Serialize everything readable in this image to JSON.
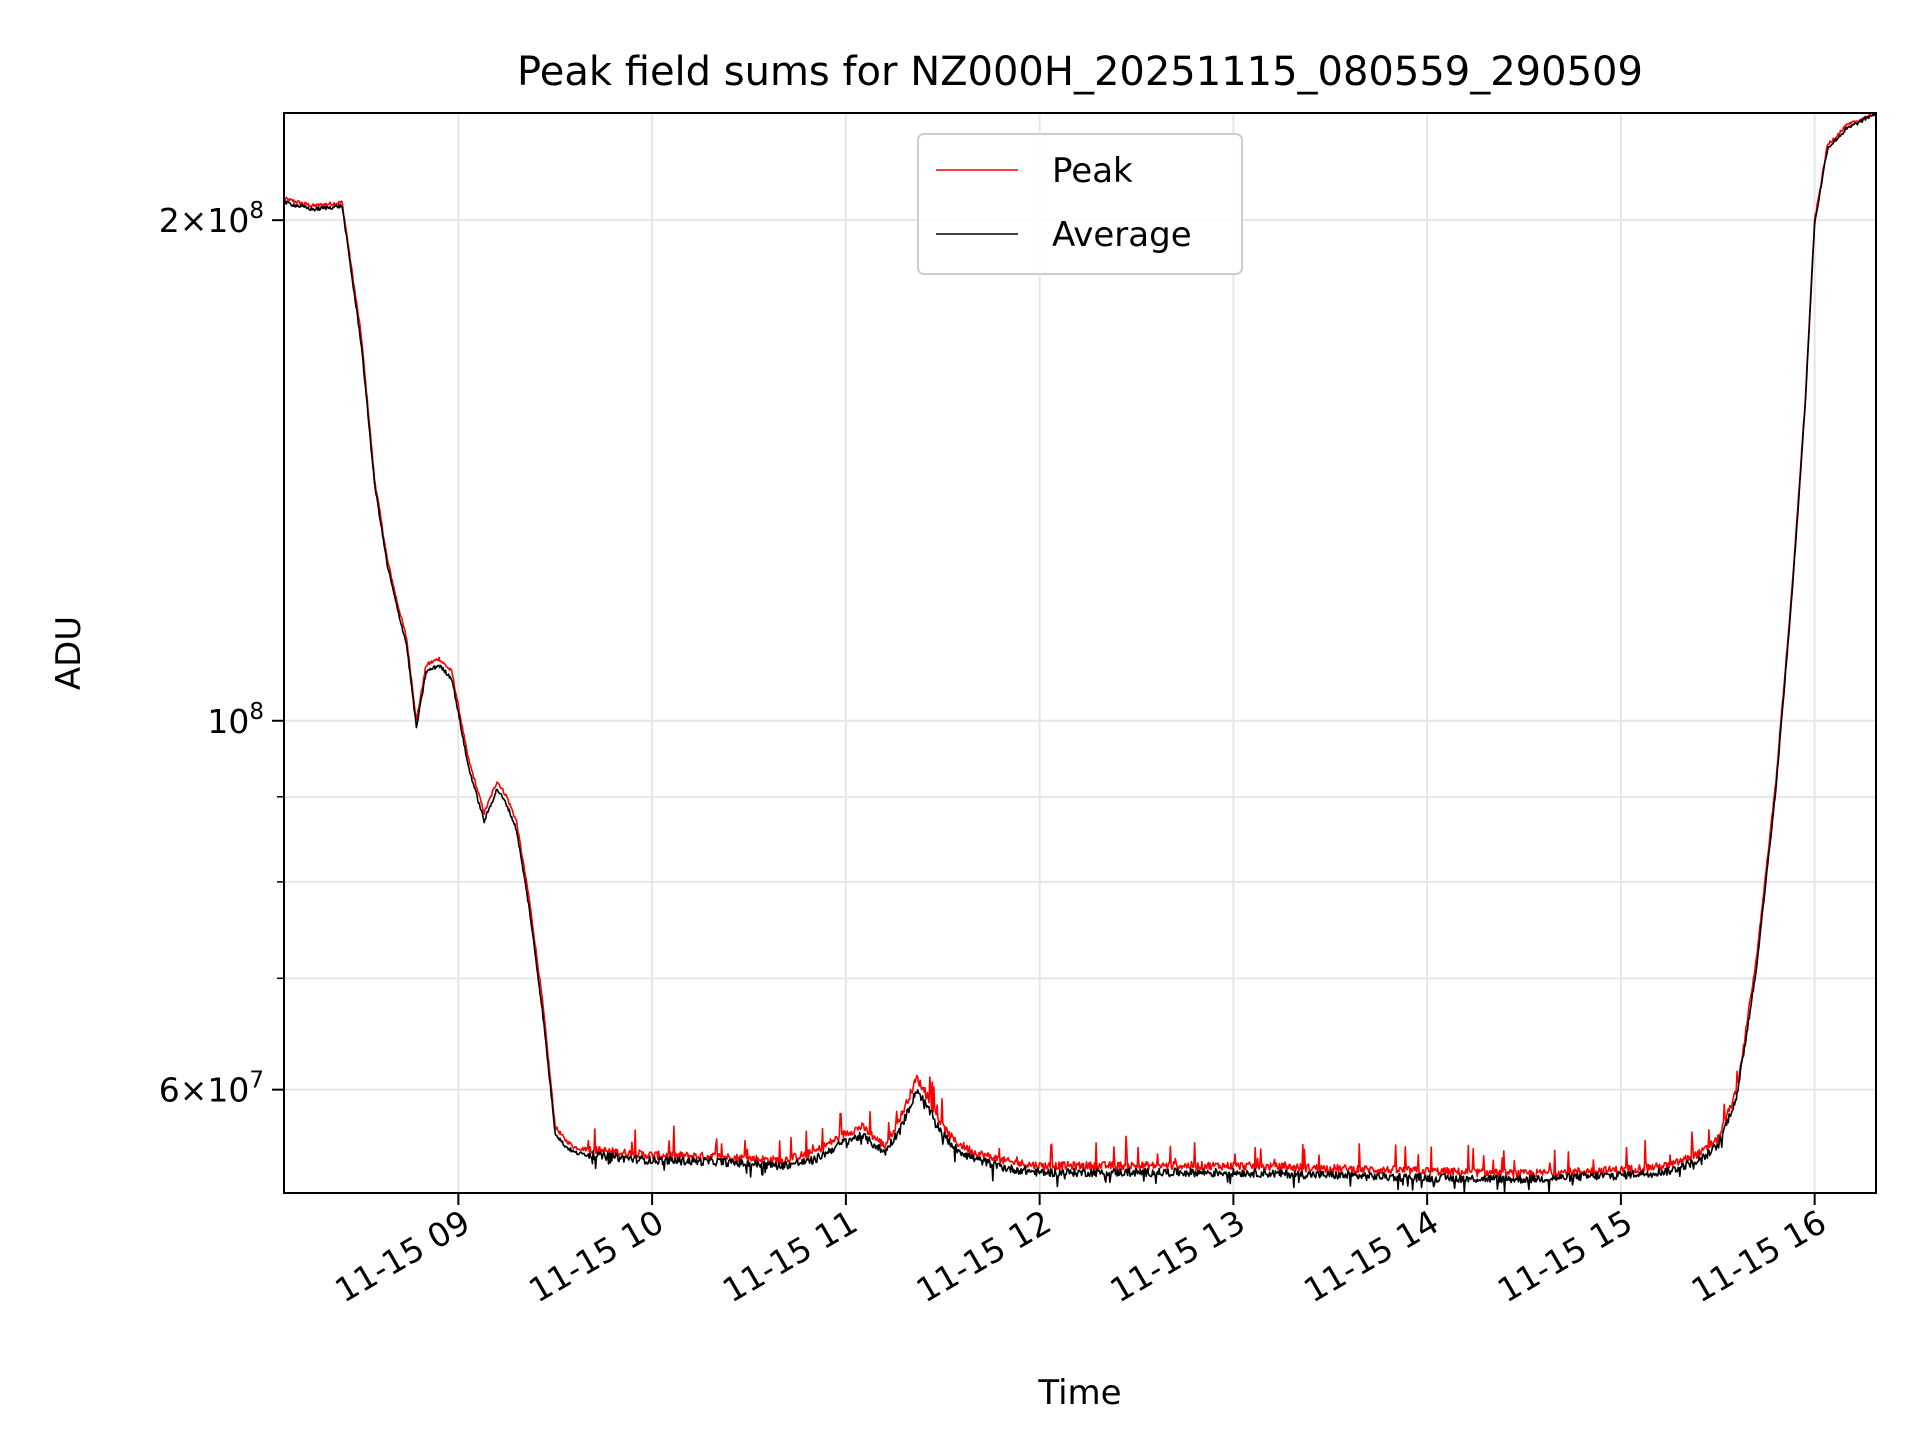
{
  "chart_data": {
    "type": "line",
    "title": "Peak field sums for NZ000H_20251115_080559_290509",
    "xlabel": "Time",
    "ylabel": "ADU",
    "yscale": "log",
    "grid": true,
    "legend_position": "top-center",
    "xlim": [
      "2025-11-15 08:06",
      "2025-11-15 16:19"
    ],
    "ylim": [
      52000000,
      232000000
    ],
    "x_ticks": [
      {
        "value": "2025-11-15 09:00",
        "label": "11-15 09"
      },
      {
        "value": "2025-11-15 10:00",
        "label": "11-15 10"
      },
      {
        "value": "2025-11-15 11:00",
        "label": "11-15 11"
      },
      {
        "value": "2025-11-15 12:00",
        "label": "11-15 12"
      },
      {
        "value": "2025-11-15 13:00",
        "label": "11-15 13"
      },
      {
        "value": "2025-11-15 14:00",
        "label": "11-15 14"
      },
      {
        "value": "2025-11-15 15:00",
        "label": "11-15 15"
      },
      {
        "value": "2025-11-15 16:00",
        "label": "11-15 16"
      }
    ],
    "y_ticks_major": [
      {
        "value": 60000000,
        "mantissa": "6",
        "exponent": "7"
      },
      {
        "value": 100000000,
        "mantissa": "",
        "exponent": "8"
      },
      {
        "value": 200000000,
        "mantissa": "2",
        "exponent": "8"
      }
    ],
    "y_ticks_minor": [
      70000000,
      80000000,
      90000000
    ],
    "series": [
      {
        "name": "Peak",
        "color": "#ff0000",
        "spiky": true,
        "x": [
          "2025-11-15 08:06",
          "2025-11-15 08:15",
          "2025-11-15 08:24",
          "2025-11-15 08:30",
          "2025-11-15 08:34",
          "2025-11-15 08:38",
          "2025-11-15 08:41",
          "2025-11-15 08:44",
          "2025-11-15 08:47",
          "2025-11-15 08:50",
          "2025-11-15 08:54",
          "2025-11-15 08:58",
          "2025-11-15 09:03",
          "2025-11-15 09:08",
          "2025-11-15 09:12",
          "2025-11-15 09:15",
          "2025-11-15 09:18",
          "2025-11-15 09:22",
          "2025-11-15 09:26",
          "2025-11-15 09:30",
          "2025-11-15 09:33",
          "2025-11-15 09:36",
          "2025-11-15 09:38",
          "2025-11-15 09:42",
          "2025-11-15 09:50",
          "2025-11-15 10:00",
          "2025-11-15 10:20",
          "2025-11-15 10:40",
          "2025-11-15 10:50",
          "2025-11-15 11:00",
          "2025-11-15 11:05",
          "2025-11-15 11:12",
          "2025-11-15 11:17",
          "2025-11-15 11:22",
          "2025-11-15 11:26",
          "2025-11-15 11:30",
          "2025-11-15 11:34",
          "2025-11-15 11:40",
          "2025-11-15 11:50",
          "2025-11-15 12:00",
          "2025-11-15 12:05",
          "2025-11-15 12:30",
          "2025-11-15 13:00",
          "2025-11-15 13:30",
          "2025-11-15 14:00",
          "2025-11-15 14:30",
          "2025-11-15 15:00",
          "2025-11-15 15:15",
          "2025-11-15 15:25",
          "2025-11-15 15:30",
          "2025-11-15 15:36",
          "2025-11-15 15:42",
          "2025-11-15 15:48",
          "2025-11-15 15:53",
          "2025-11-15 15:57",
          "2025-11-15 16:00",
          "2025-11-15 16:04",
          "2025-11-15 16:10",
          "2025-11-15 16:19"
        ],
        "y": [
          206000000,
          204000000,
          205000000,
          170000000,
          140000000,
          125000000,
          118000000,
          112000000,
          100000000,
          108000000,
          109000000,
          107000000,
          95000000,
          88000000,
          92000000,
          90000000,
          87000000,
          78000000,
          68000000,
          57000000,
          56000000,
          55400000,
          55300000,
          55200000,
          55000000,
          54800000,
          54700000,
          54400000,
          55000000,
          56500000,
          57000000,
          55500000,
          57800000,
          61000000,
          59000000,
          57000000,
          55800000,
          55000000,
          54300000,
          54000000,
          54000000,
          54000000,
          54000000,
          53800000,
          53600000,
          53400000,
          53700000,
          54000000,
          55000000,
          56000000,
          60000000,
          72000000,
          92000000,
          120000000,
          155000000,
          200000000,
          222000000,
          228000000,
          232000000
        ]
      },
      {
        "name": "Average",
        "color": "#000000",
        "spiky": false,
        "x": [
          "2025-11-15 08:06",
          "2025-11-15 08:15",
          "2025-11-15 08:24",
          "2025-11-15 08:30",
          "2025-11-15 08:34",
          "2025-11-15 08:38",
          "2025-11-15 08:41",
          "2025-11-15 08:44",
          "2025-11-15 08:47",
          "2025-11-15 08:50",
          "2025-11-15 08:54",
          "2025-11-15 08:58",
          "2025-11-15 09:03",
          "2025-11-15 09:08",
          "2025-11-15 09:12",
          "2025-11-15 09:15",
          "2025-11-15 09:18",
          "2025-11-15 09:22",
          "2025-11-15 09:26",
          "2025-11-15 09:30",
          "2025-11-15 09:33",
          "2025-11-15 09:36",
          "2025-11-15 09:38",
          "2025-11-15 09:42",
          "2025-11-15 09:50",
          "2025-11-15 10:00",
          "2025-11-15 10:20",
          "2025-11-15 10:40",
          "2025-11-15 10:50",
          "2025-11-15 11:00",
          "2025-11-15 11:05",
          "2025-11-15 11:12",
          "2025-11-15 11:17",
          "2025-11-15 11:22",
          "2025-11-15 11:26",
          "2025-11-15 11:30",
          "2025-11-15 11:34",
          "2025-11-15 11:40",
          "2025-11-15 11:50",
          "2025-11-15 12:00",
          "2025-11-15 12:05",
          "2025-11-15 12:30",
          "2025-11-15 13:00",
          "2025-11-15 13:30",
          "2025-11-15 14:00",
          "2025-11-15 14:30",
          "2025-11-15 15:00",
          "2025-11-15 15:15",
          "2025-11-15 15:25",
          "2025-11-15 15:30",
          "2025-11-15 15:36",
          "2025-11-15 15:42",
          "2025-11-15 15:48",
          "2025-11-15 15:53",
          "2025-11-15 15:57",
          "2025-11-15 16:00",
          "2025-11-15 16:04",
          "2025-11-15 16:10",
          "2025-11-15 16:19"
        ],
        "y": [
          205000000,
          203000000,
          204000000,
          168000000,
          139000000,
          124000000,
          117000000,
          111000000,
          99000000,
          107000000,
          108000000,
          106000000,
          94000000,
          87000000,
          91000000,
          89000000,
          86000000,
          77000000,
          67000000,
          56500000,
          55500000,
          55000000,
          54900000,
          54800000,
          54600000,
          54400000,
          54300000,
          54000000,
          54400000,
          55900000,
          56300000,
          55000000,
          56900000,
          60000000,
          58200000,
          56400000,
          55300000,
          54500000,
          53800000,
          53500000,
          53500000,
          53500000,
          53500000,
          53300000,
          53100000,
          53000000,
          53300000,
          53600000,
          54500000,
          55500000,
          59500000,
          71000000,
          91000000,
          119000000,
          154000000,
          199000000,
          221000000,
          227000000,
          232000000
        ]
      }
    ]
  }
}
